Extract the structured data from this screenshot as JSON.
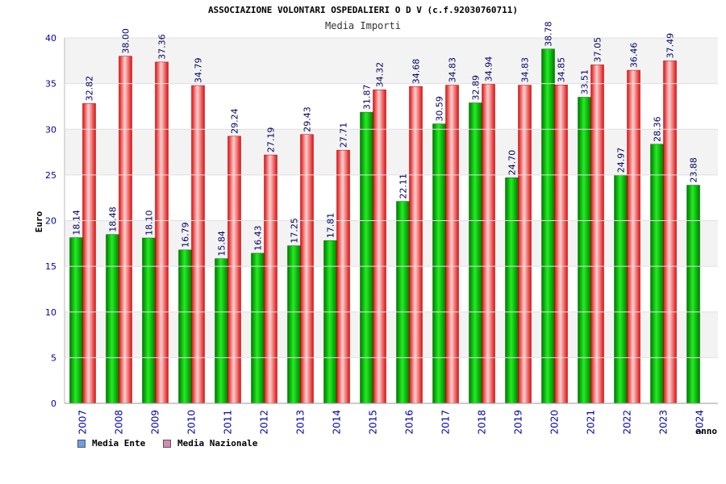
{
  "chart_data": {
    "type": "bar",
    "title": "ASSOCIAZIONE VOLONTARI OSPEDALIERI O D V (c.f.92030760711)",
    "subtitle": "Media Importi",
    "xlabel": "anno",
    "ylabel": "Euro",
    "ylim": [
      0,
      40
    ],
    "yticks": [
      "0",
      "5",
      "10",
      "15",
      "20",
      "25",
      "30",
      "35",
      "40"
    ],
    "grid": "horizontal bands",
    "legend_position": "bottom-left",
    "categories": [
      "2007",
      "2008",
      "2009",
      "2010",
      "2011",
      "2012",
      "2013",
      "2014",
      "2015",
      "2016",
      "2017",
      "2018",
      "2019",
      "2020",
      "2021",
      "2022",
      "2023",
      "2024"
    ],
    "series": [
      {
        "name": "Media Ente",
        "color": "#00bb00",
        "legend_color": "#6aa0e8",
        "values": [
          18.14,
          18.48,
          18.1,
          16.79,
          15.84,
          16.43,
          17.25,
          17.81,
          31.87,
          22.11,
          30.59,
          32.89,
          24.7,
          38.78,
          33.51,
          24.97,
          28.36,
          23.88
        ],
        "labels": [
          "18.14",
          "18.48",
          "18.10",
          "16.79",
          "15.84",
          "16.43",
          "17.25",
          "17.81",
          "31.87",
          "22.11",
          "30.59",
          "32.89",
          "24.70",
          "38.78",
          "33.51",
          "24.97",
          "28.36",
          "23.88"
        ]
      },
      {
        "name": "Media Nazionale",
        "color": "#ee2222",
        "legend_color": "#d88ab0",
        "values": [
          32.82,
          38.0,
          37.36,
          34.79,
          29.24,
          27.19,
          29.43,
          27.71,
          34.32,
          34.68,
          34.83,
          34.94,
          34.83,
          34.85,
          37.05,
          36.46,
          37.49,
          null
        ],
        "labels": [
          "32.82",
          "38.00",
          "37.36",
          "34.79",
          "29.24",
          "27.19",
          "29.43",
          "27.71",
          "34.32",
          "34.68",
          "34.83",
          "34.94",
          "34.83",
          "34.85",
          "37.05",
          "36.46",
          "37.49",
          ""
        ]
      }
    ]
  }
}
